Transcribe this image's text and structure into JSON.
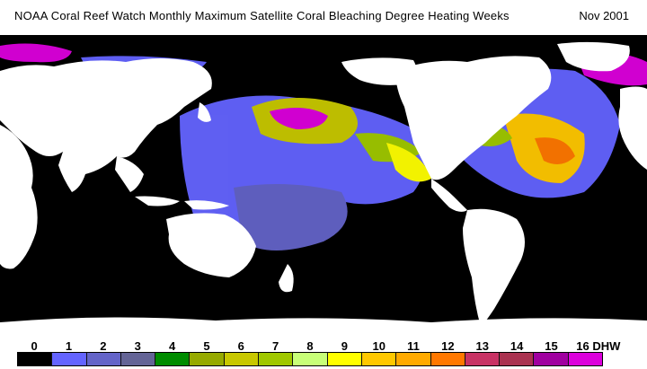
{
  "title": {
    "main": "NOAA Coral Reef Watch Monthly Maximum Satellite Coral Bleaching Degree Heating Weeks",
    "date": "Nov 2001"
  },
  "map": {
    "ocean_color": "#000000",
    "land_color": "#ffffff"
  },
  "legend": {
    "labels": [
      "0",
      "1",
      "2",
      "3",
      "4",
      "5",
      "6",
      "7",
      "8",
      "9",
      "10",
      "11",
      "12",
      "13",
      "14",
      "15",
      "16 DHW"
    ],
    "colors": [
      "#000000",
      "#6464ff",
      "#6464c8",
      "#646496",
      "#008c00",
      "#96aa00",
      "#c8c800",
      "#a0c800",
      "#c8ff78",
      "#ffff00",
      "#ffc800",
      "#ffaa00",
      "#ff7800",
      "#c83264",
      "#aa3250",
      "#a000a0",
      "#dc00dc"
    ]
  }
}
